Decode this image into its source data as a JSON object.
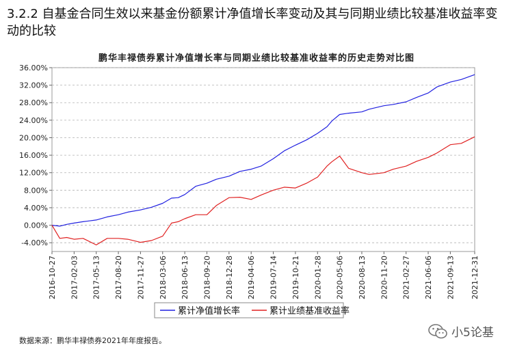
{
  "header": {
    "section_title": "3.2.2 自基金合同生效以来基金份额累计净值增长率变动及其与同期业绩比较基准收益率变动的比较"
  },
  "footnote": "数据来源：鹏华丰禄债券2021年年度报告。",
  "watermark": "小5论基",
  "chart_data": {
    "type": "line",
    "title": "鹏华丰禄债券累计净值增长率与同期业绩比较基准收益率的历史走势对比图",
    "ylim": [
      -6,
      36
    ],
    "yticks": [
      -4,
      0,
      4,
      8,
      12,
      16,
      20,
      24,
      28,
      32,
      36
    ],
    "ytick_labels": [
      "-4.00%",
      "0.00%",
      "4.00%",
      "8.00%",
      "12.00%",
      "16.00%",
      "20.00%",
      "24.00%",
      "28.00%",
      "32.00%",
      "36.00%"
    ],
    "xlim": [
      "2016-10-27",
      "2021-12-31"
    ],
    "xtick_labels": [
      "2016-10-27",
      "2017-02-03",
      "2017-05-13",
      "2017-08-20",
      "2017-11-27",
      "2018-03-06",
      "2018-06-13",
      "2018-09-20",
      "2018-12-28",
      "2019-04-06",
      "2019-07-14",
      "2019-10-21",
      "2020-01-28",
      "2020-05-06",
      "2020-08-13",
      "2020-11-20",
      "2021-02-27",
      "2021-06-06",
      "2021-09-13",
      "2021-12-31"
    ],
    "grid": true,
    "legend_position": "bottom",
    "series": [
      {
        "name": "累计净值增长率",
        "color": "#2020e0",
        "x": [
          "2016-10-27",
          "2016-12-01",
          "2017-01-01",
          "2017-02-03",
          "2017-03-15",
          "2017-05-13",
          "2017-07-01",
          "2017-08-20",
          "2017-10-01",
          "2017-11-27",
          "2018-01-15",
          "2018-03-06",
          "2018-04-15",
          "2018-05-15",
          "2018-06-13",
          "2018-08-01",
          "2018-09-20",
          "2018-11-01",
          "2018-12-28",
          "2019-02-15",
          "2019-04-06",
          "2019-05-20",
          "2019-07-14",
          "2019-09-01",
          "2019-10-21",
          "2019-12-10",
          "2020-01-28",
          "2020-03-10",
          "2020-04-01",
          "2020-05-06",
          "2020-06-15",
          "2020-08-13",
          "2020-09-15",
          "2020-11-20",
          "2021-01-01",
          "2021-02-27",
          "2021-04-15",
          "2021-06-06",
          "2021-07-15",
          "2021-09-13",
          "2021-11-01",
          "2021-12-31"
        ],
        "values": [
          0.0,
          -0.2,
          0.2,
          0.5,
          0.8,
          1.2,
          1.9,
          2.4,
          3.0,
          3.5,
          4.1,
          5.0,
          6.2,
          6.3,
          7.0,
          8.9,
          9.6,
          10.5,
          11.2,
          12.3,
          12.8,
          13.5,
          15.2,
          17.0,
          18.3,
          19.5,
          21.0,
          22.5,
          23.8,
          25.3,
          25.6,
          25.9,
          26.5,
          27.3,
          27.6,
          28.2,
          29.2,
          30.2,
          31.6,
          32.7,
          33.3,
          34.4
        ]
      },
      {
        "name": "累计业绩基准收益率",
        "color": "#e02020",
        "x": [
          "2016-10-27",
          "2016-12-01",
          "2017-01-01",
          "2017-02-03",
          "2017-03-15",
          "2017-05-13",
          "2017-07-01",
          "2017-08-20",
          "2017-10-01",
          "2017-11-27",
          "2018-01-15",
          "2018-03-06",
          "2018-04-15",
          "2018-05-15",
          "2018-06-13",
          "2018-08-01",
          "2018-09-20",
          "2018-11-01",
          "2018-12-28",
          "2019-02-15",
          "2019-04-06",
          "2019-05-20",
          "2019-07-14",
          "2019-09-01",
          "2019-10-21",
          "2019-12-10",
          "2020-01-28",
          "2020-03-10",
          "2020-04-01",
          "2020-05-06",
          "2020-06-15",
          "2020-08-13",
          "2020-09-15",
          "2020-11-20",
          "2021-01-01",
          "2021-02-27",
          "2021-04-15",
          "2021-06-06",
          "2021-07-15",
          "2021-09-13",
          "2021-11-01",
          "2021-12-31"
        ],
        "values": [
          0.0,
          -3.0,
          -2.8,
          -3.2,
          -3.0,
          -4.5,
          -3.0,
          -3.0,
          -3.2,
          -3.9,
          -3.5,
          -2.5,
          0.5,
          0.8,
          1.5,
          2.4,
          2.4,
          4.5,
          6.3,
          6.4,
          5.9,
          6.9,
          8.0,
          8.7,
          8.5,
          9.6,
          11.0,
          13.5,
          14.5,
          15.8,
          13.0,
          12.0,
          11.6,
          12.0,
          12.8,
          13.5,
          14.6,
          15.5,
          16.5,
          18.4,
          18.7,
          20.2
        ]
      }
    ]
  }
}
